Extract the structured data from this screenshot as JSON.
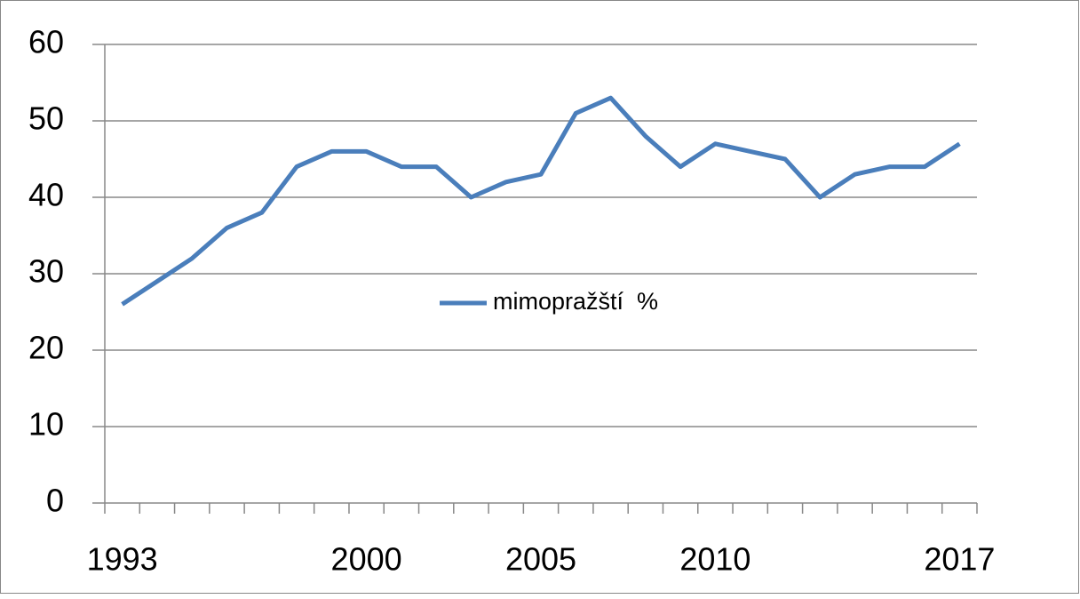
{
  "chart_data": {
    "type": "line",
    "categories": [
      "1993",
      null,
      null,
      null,
      null,
      null,
      null,
      "2000",
      null,
      null,
      null,
      null,
      "2005",
      null,
      null,
      null,
      null,
      "2010",
      null,
      null,
      null,
      null,
      null,
      null,
      "2017"
    ],
    "series": [
      {
        "name": "mimopražští  %",
        "color": "#4a7ebb",
        "values": [
          26,
          29,
          32,
          36,
          38,
          44,
          46,
          46,
          44,
          44,
          40,
          42,
          43,
          51,
          53,
          48,
          44,
          47,
          46,
          45,
          40,
          43,
          44,
          44,
          47
        ]
      }
    ],
    "ylim": [
      0,
      60
    ],
    "yticks": [
      0,
      10,
      20,
      30,
      40,
      50,
      60
    ],
    "grid": true,
    "legend": "center"
  }
}
